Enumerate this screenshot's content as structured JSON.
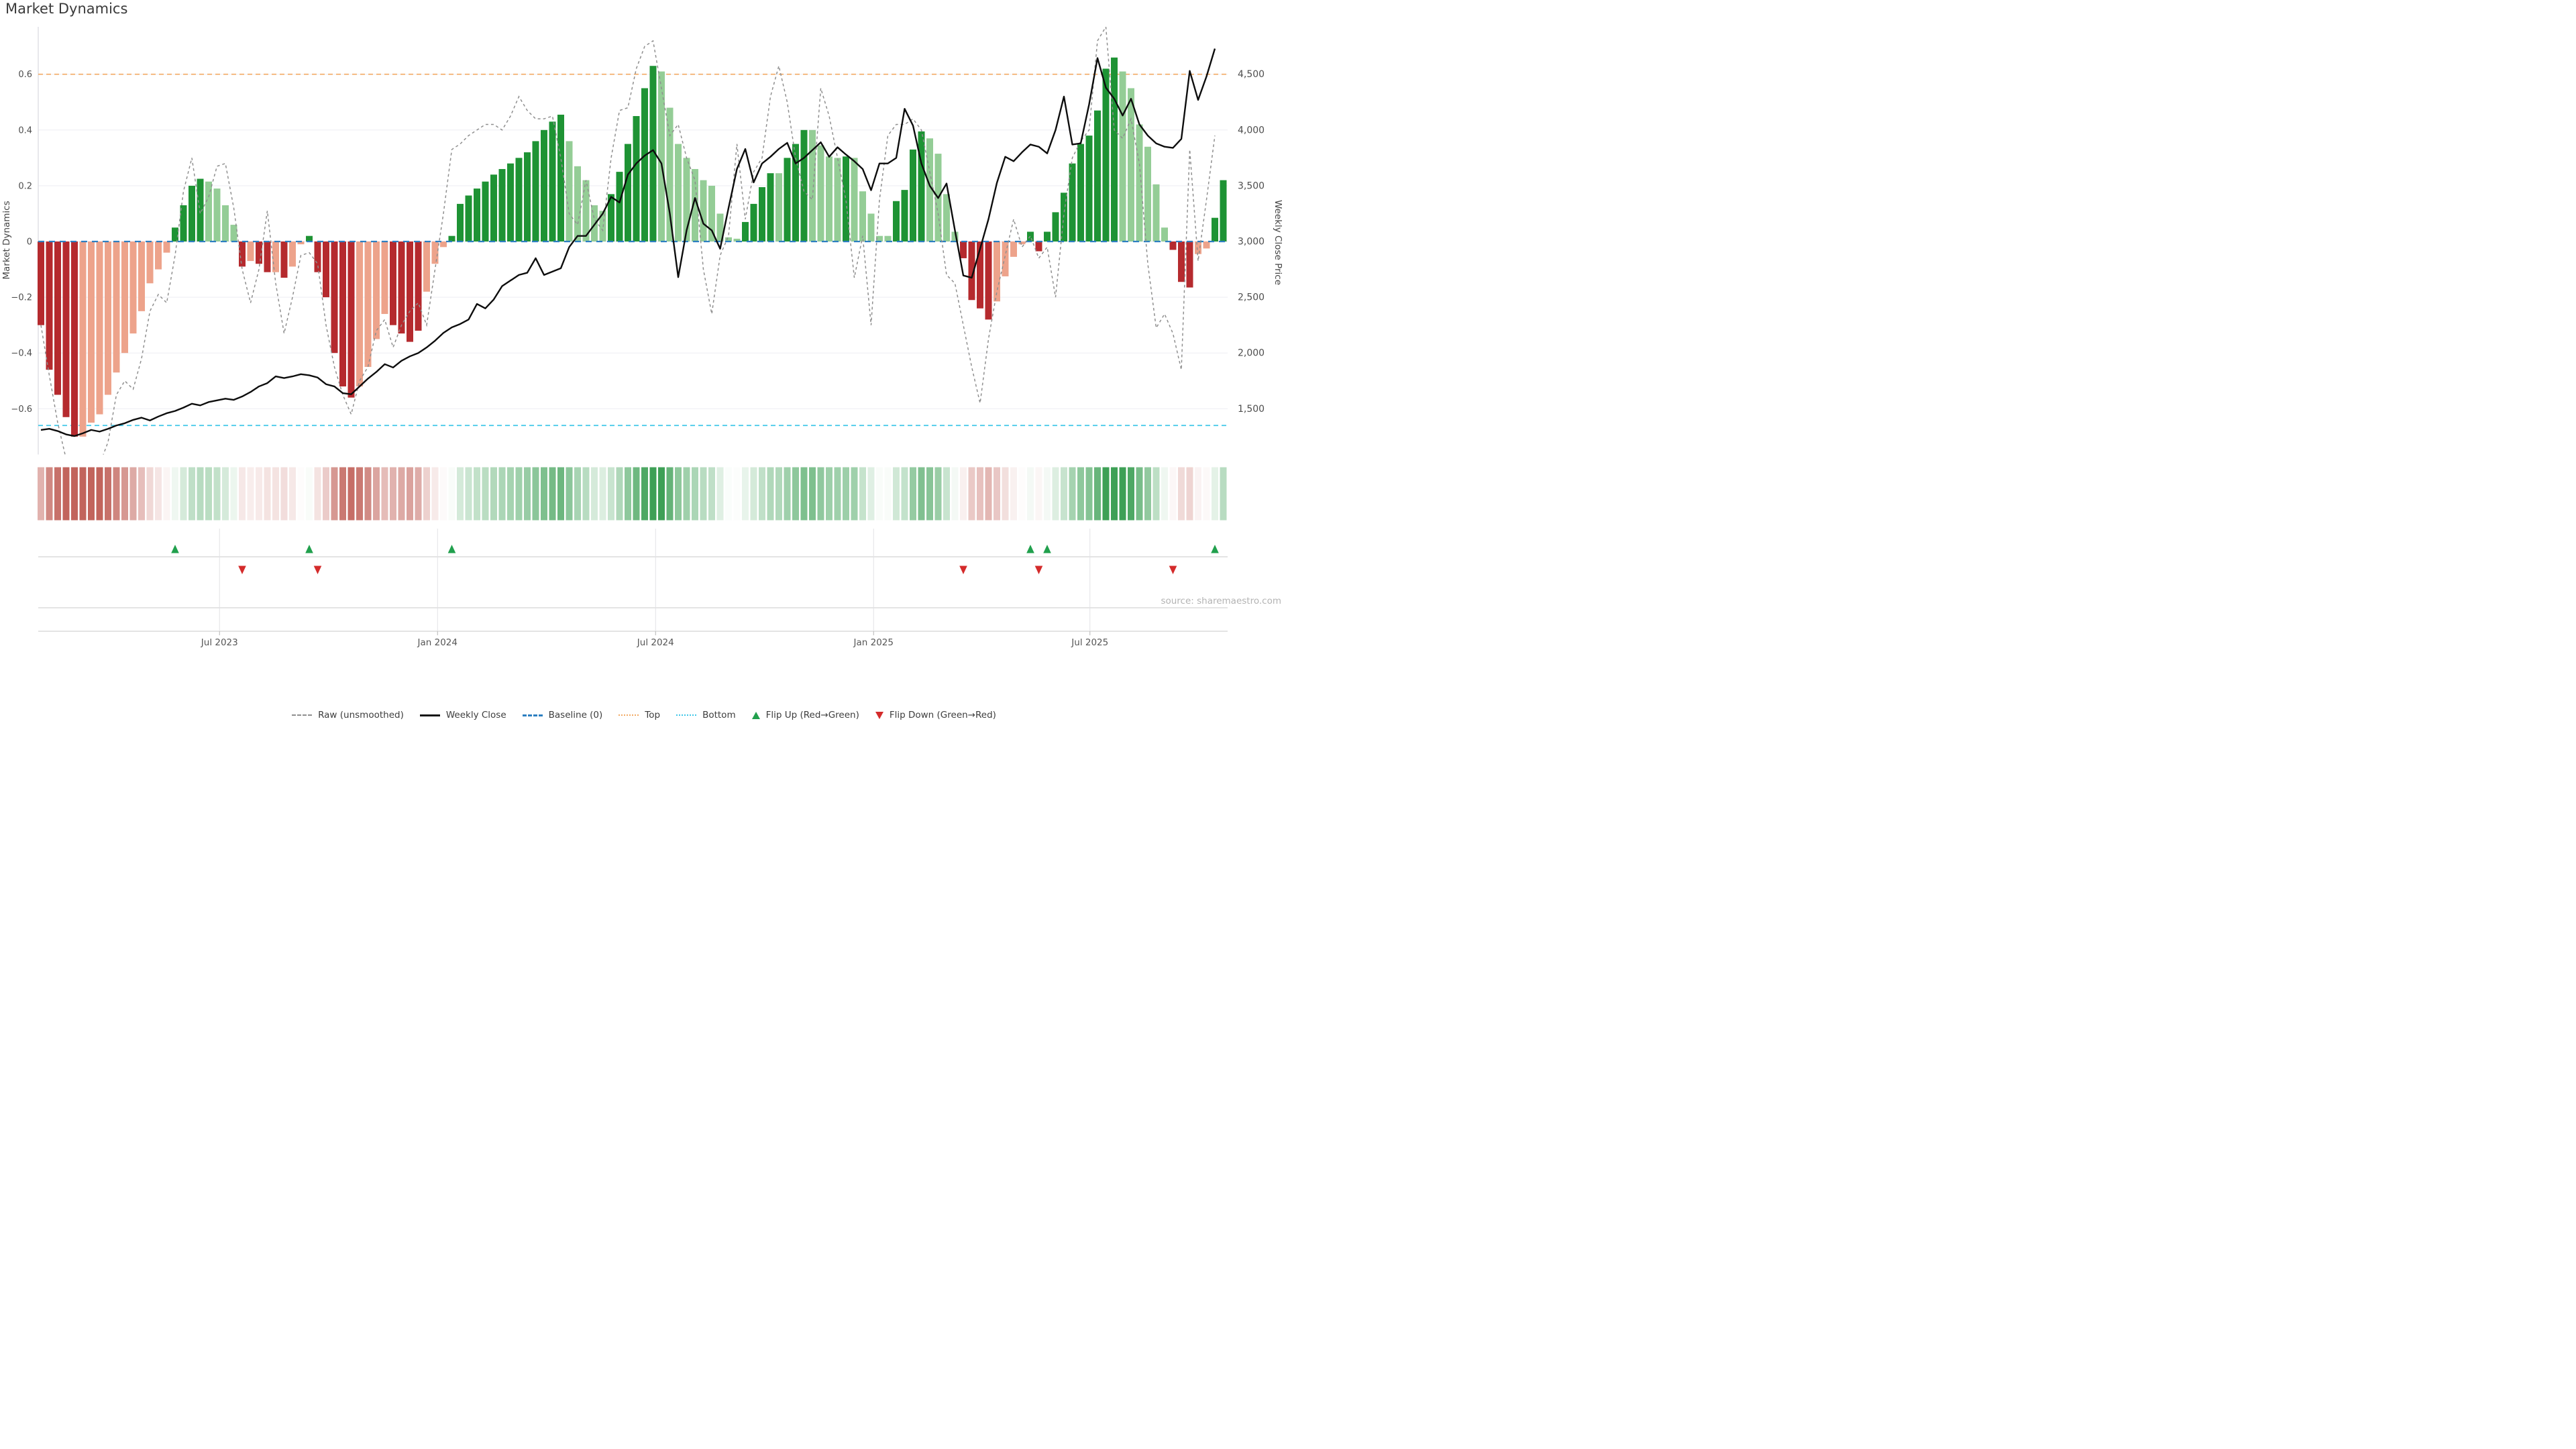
{
  "chart_data": {
    "type": "bar",
    "title": "Market Dynamics",
    "source": "source: sharemaestro.com",
    "axes": {
      "left_title": "Market Dynamics",
      "right_title": "Weekly Close Price",
      "left_ticks": [
        {
          "v": 0.6,
          "label": "0.6"
        },
        {
          "v": 0.4,
          "label": "0.4"
        },
        {
          "v": 0.2,
          "label": "0.2"
        },
        {
          "v": 0.0,
          "label": "0"
        },
        {
          "v": -0.2,
          "label": "−0.2"
        },
        {
          "v": -0.4,
          "label": "−0.4"
        },
        {
          "v": -0.6,
          "label": "−0.6"
        }
      ],
      "right_ticks": [
        {
          "p": 4500,
          "label": "4,500"
        },
        {
          "p": 4000,
          "label": "4,000"
        },
        {
          "p": 3500,
          "label": "3,500"
        },
        {
          "p": 3000,
          "label": "3,000"
        },
        {
          "p": 2500,
          "label": "2,500"
        },
        {
          "p": 2000,
          "label": "2,000"
        },
        {
          "p": 1500,
          "label": "1,500"
        }
      ],
      "x_ticks": [
        {
          "label": "Jul 2023",
          "week": 21.3
        },
        {
          "label": "Jan 2024",
          "week": 47.3
        },
        {
          "label": "Jul 2024",
          "week": 73.3
        },
        {
          "label": "Jan 2025",
          "week": 99.3
        },
        {
          "label": "Jul 2025",
          "week": 125.1
        }
      ],
      "ylim": [
        -0.77,
        0.77
      ],
      "baseline": 0,
      "top_line": 0.6,
      "bottom_line": -0.66
    },
    "weeks": 142,
    "dynamics": [
      -0.3,
      -0.46,
      -0.55,
      -0.63,
      -0.7,
      -0.7,
      -0.65,
      -0.62,
      -0.55,
      -0.47,
      -0.4,
      -0.33,
      -0.25,
      -0.15,
      -0.1,
      -0.04,
      0.05,
      0.13,
      0.2,
      0.225,
      0.215,
      0.19,
      0.13,
      0.06,
      -0.09,
      -0.07,
      -0.08,
      -0.11,
      -0.11,
      -0.13,
      -0.09,
      -0.01,
      0.02,
      -0.11,
      -0.2,
      -0.4,
      -0.52,
      -0.56,
      -0.52,
      -0.45,
      -0.35,
      -0.26,
      -0.3,
      -0.33,
      -0.36,
      -0.32,
      -0.18,
      -0.08,
      -0.02,
      0.02,
      0.135,
      0.165,
      0.19,
      0.215,
      0.24,
      0.26,
      0.28,
      0.3,
      0.32,
      0.36,
      0.4,
      0.43,
      0.455,
      0.36,
      0.27,
      0.22,
      0.13,
      0.11,
      0.17,
      0.25,
      0.35,
      0.45,
      0.55,
      0.63,
      0.61,
      0.48,
      0.35,
      0.3,
      0.26,
      0.22,
      0.2,
      0.1,
      0.015,
      0.01,
      0.07,
      0.135,
      0.195,
      0.245,
      0.245,
      0.3,
      0.35,
      0.4,
      0.4,
      0.345,
      0.305,
      0.3,
      0.305,
      0.3,
      0.18,
      0.1,
      0.02,
      0.02,
      0.145,
      0.185,
      0.33,
      0.395,
      0.37,
      0.315,
      0.17,
      0.035,
      -0.06,
      -0.21,
      -0.24,
      -0.28,
      -0.215,
      -0.125,
      -0.055,
      -0.01,
      0.035,
      -0.035,
      0.035,
      0.105,
      0.175,
      0.28,
      0.35,
      0.38,
      0.47,
      0.62,
      0.66,
      0.61,
      0.55,
      0.42,
      0.34,
      0.205,
      0.05,
      -0.03,
      -0.145,
      -0.165,
      -0.045,
      -0.025,
      0.085,
      0.22
    ],
    "shade": "DDDDDLLLLLLLLLLLDDDDLLLLDLDDLDLLDDDDDDLLLLDDDDLLLDDDDDDDDDDDDDDLLLLLDDDDDDLLLLLLLLLLDDDDLDDDLLLLDLLLLLDDDDLLLLDDDDLLLLDDDDDDDDDDDLLLLLLDDDLLDD",
    "raw": [
      -0.3,
      -0.48,
      -0.65,
      -0.78,
      -0.85,
      -0.86,
      -0.83,
      -0.8,
      -0.72,
      -0.55,
      -0.5,
      -0.53,
      -0.42,
      -0.25,
      -0.19,
      -0.22,
      -0.05,
      0.18,
      0.3,
      0.1,
      0.16,
      0.27,
      0.28,
      0.12,
      -0.1,
      -0.22,
      -0.1,
      0.11,
      -0.15,
      -0.33,
      -0.2,
      -0.05,
      -0.04,
      -0.08,
      -0.3,
      -0.45,
      -0.55,
      -0.62,
      -0.5,
      -0.45,
      -0.32,
      -0.28,
      -0.38,
      -0.3,
      -0.25,
      -0.22,
      -0.3,
      -0.1,
      0.1,
      0.33,
      0.35,
      0.38,
      0.4,
      0.42,
      0.42,
      0.4,
      0.45,
      0.52,
      0.47,
      0.44,
      0.44,
      0.45,
      0.3,
      0.1,
      0.06,
      0.22,
      0.08,
      0.04,
      0.3,
      0.47,
      0.48,
      0.62,
      0.7,
      0.72,
      0.55,
      0.38,
      0.42,
      0.3,
      0.22,
      -0.1,
      -0.26,
      -0.05,
      0.02,
      0.35,
      0.08,
      0.25,
      0.3,
      0.52,
      0.63,
      0.5,
      0.3,
      0.18,
      0.15,
      0.55,
      0.45,
      0.3,
      0.15,
      -0.13,
      0.02,
      -0.3,
      0.15,
      0.38,
      0.42,
      0.42,
      0.44,
      0.4,
      0.25,
      0.1,
      -0.12,
      -0.15,
      -0.3,
      -0.45,
      -0.58,
      -0.35,
      -0.18,
      -0.05,
      0.08,
      -0.02,
      0.02,
      -0.06,
      -0.02,
      -0.2,
      0.1,
      0.3,
      0.36,
      0.4,
      0.72,
      0.77,
      0.4,
      0.37,
      0.44,
      0.28,
      -0.08,
      -0.31,
      -0.26,
      -0.33,
      -0.46,
      0.33,
      -0.07,
      0.15,
      0.38
    ],
    "price": [
      1310,
      1320,
      1300,
      1270,
      1255,
      1280,
      1310,
      1295,
      1320,
      1350,
      1370,
      1400,
      1420,
      1395,
      1430,
      1460,
      1480,
      1510,
      1545,
      1530,
      1560,
      1575,
      1590,
      1580,
      1610,
      1650,
      1700,
      1730,
      1790,
      1775,
      1790,
      1810,
      1800,
      1780,
      1720,
      1700,
      1640,
      1630,
      1700,
      1770,
      1830,
      1900,
      1870,
      1930,
      1970,
      2000,
      2050,
      2110,
      2180,
      2230,
      2260,
      2300,
      2440,
      2400,
      2480,
      2600,
      2650,
      2700,
      2720,
      2850,
      2700,
      2730,
      2760,
      2950,
      3050,
      3050,
      3150,
      3250,
      3400,
      3350,
      3600,
      3700,
      3770,
      3820,
      3700,
      3250,
      2680,
      3100,
      3390,
      3160,
      3100,
      2935,
      3300,
      3650,
      3830,
      3530,
      3700,
      3760,
      3830,
      3885,
      3700,
      3750,
      3820,
      3890,
      3760,
      3845,
      3780,
      3720,
      3650,
      3460,
      3700,
      3700,
      3750,
      4190,
      4040,
      3700,
      3500,
      3390,
      3520,
      3100,
      2695,
      2675,
      2935,
      3200,
      3525,
      3760,
      3720,
      3800,
      3870,
      3850,
      3790,
      4000,
      4300,
      3870,
      3880,
      4230,
      4645,
      4380,
      4280,
      4130,
      4280,
      4050,
      3950,
      3880,
      3850,
      3840,
      3920,
      4530,
      4270,
      4480,
      4730
    ],
    "flip_up_weeks": [
      16,
      32,
      49,
      118,
      120,
      140
    ],
    "flip_down_weeks": [
      24,
      33,
      110,
      119,
      135
    ],
    "legend": [
      "Raw (unsmoothed)",
      "Weekly Close",
      "Baseline (0)",
      "Top",
      "Bottom",
      "Flip Up (Red→Green)",
      "Flip Down (Green→Red)"
    ],
    "colors": {
      "bar_neg_dark": "#b52a2e",
      "bar_neg_light": "#eda38b",
      "bar_pos_dark": "#1e9334",
      "bar_pos_light": "#94cd96",
      "price_line": "#0d0d0d",
      "raw_line": "#8f8f8f",
      "baseline": "#2d7fc1",
      "top_line": "#f2a963",
      "bottom_line": "#3ec6e8",
      "grid": "#ededf3",
      "spine": "#d8d8de",
      "lane_line": "#c9c9c9",
      "tick_vline": "#e2e2e6",
      "heat_pos": "#3ea056",
      "heat_neg": "#c2645c",
      "flip_up": "#21a04d",
      "flip_down": "#d42b2b",
      "tick_label": "#4d4d4d"
    }
  }
}
